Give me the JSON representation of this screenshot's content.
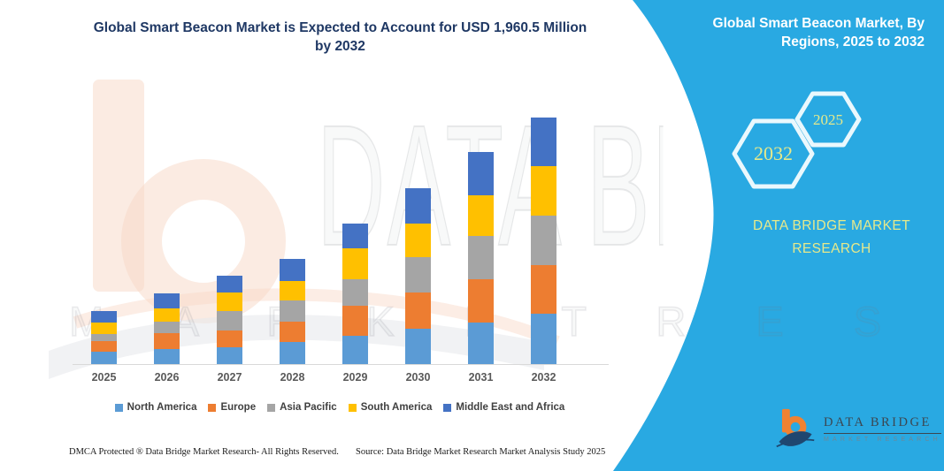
{
  "header": {
    "title_line1": "Global Smart Beacon Market is Expected to Account for USD 1,960.5 Million",
    "title_line2": "by 2032"
  },
  "side_panel": {
    "accent_color": "#29A9E2",
    "heading_line1": "Global Smart Beacon Market, By",
    "heading_line2": "Regions, 2025 to 2032",
    "hexagons": [
      {
        "label": "2032"
      },
      {
        "label": "2025"
      }
    ],
    "hex_text_color": "#E6E98B",
    "brand_line1": "DATA BRIDGE MARKET",
    "brand_line2": "RESEARCH"
  },
  "chart_data": {
    "type": "bar",
    "stacked": true,
    "title": "Global Smart Beacon Market is Expected to Account for USD 1,960.5 Million by 2032",
    "unit": "USD Million",
    "xlabel": "",
    "ylabel": "",
    "ylim": [
      0,
      2000
    ],
    "gridlines": false,
    "legend_position": "bottom",
    "categories": [
      "2025",
      "2026",
      "2027",
      "2028",
      "2029",
      "2030",
      "2031",
      "2032"
    ],
    "series": [
      {
        "name": "North America",
        "color": "#5B9BD5",
        "values": [
          100,
          117,
          136,
          178,
          227,
          281,
          333,
          398.5
        ]
      },
      {
        "name": "Europe",
        "color": "#ED7D31",
        "values": [
          82,
          131,
          129,
          157,
          234,
          290,
          340,
          391
        ]
      },
      {
        "name": "Asia Pacific",
        "color": "#A5A5A5",
        "values": [
          59,
          87,
          157,
          169,
          211,
          281,
          344,
          391
        ]
      },
      {
        "name": "South America",
        "color": "#FFC000",
        "values": [
          93,
          110,
          148,
          159,
          246,
          265,
          323,
          394
        ]
      },
      {
        "name": "Middle East and Africa",
        "color": "#4472C4",
        "values": [
          87,
          117,
          131,
          176,
          199,
          281,
          344,
          386
        ]
      }
    ],
    "totals_estimated": [
      421,
      562,
      701,
      839,
      1117,
      1398,
      1684,
      1960.5
    ],
    "stated_total_2032": 1960.5
  },
  "footer": {
    "left": "DMCA Protected ® Data Bridge Market Research-  All Rights Reserved.",
    "source": "Source: Data Bridge Market Research  Market Analysis Study 2025"
  },
  "logo": {
    "name": "DATA BRIDGE",
    "subtitle": "MARKET RESEARCH"
  },
  "watermark": {
    "text": "DATA BRIDGE",
    "subtext": "M A R K E T    R E S E A R C H"
  }
}
